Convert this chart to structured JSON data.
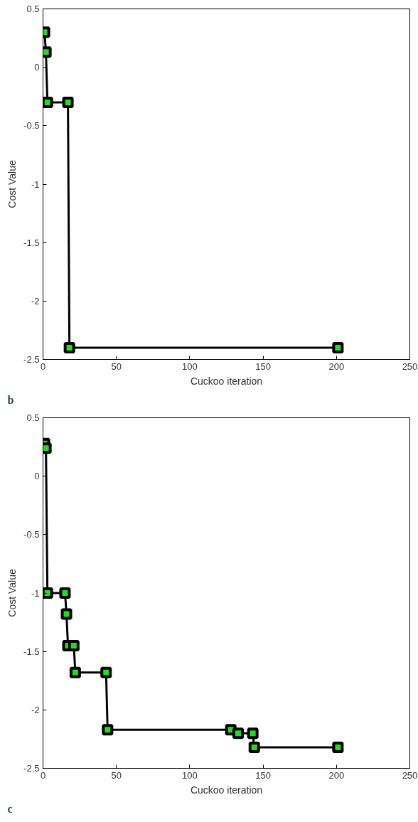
{
  "chart_data": [
    {
      "type": "line",
      "xlabel": "Cuckoo iteration",
      "ylabel": "Cost Value",
      "annotations": [
        "b"
      ],
      "marker": "square",
      "grid": false,
      "xlim": [
        0,
        250
      ],
      "ylim": [
        -2.5,
        0.5
      ],
      "xticks": [
        0,
        50,
        100,
        150,
        200,
        250
      ],
      "yticks": [
        -2.5,
        -2,
        -1.5,
        -1,
        -0.5,
        0,
        0.5
      ],
      "x": [
        1,
        2,
        3,
        17,
        18,
        201
      ],
      "series": [
        {
          "color": "#000000",
          "colors": [
            "#22dd22",
            "#22dd22",
            "#22dd22",
            "#22dd22",
            "#22dd22",
            "#22dd22"
          ],
          "values": [
            0.3,
            0.13,
            -0.3,
            -0.3,
            -2.4,
            -2.4
          ]
        }
      ]
    },
    {
      "type": "line",
      "xlabel": "Cuckoo iteration",
      "ylabel": "Cost Value",
      "annotations": [
        "c"
      ],
      "marker": "square",
      "grid": false,
      "xlim": [
        0,
        250
      ],
      "ylim": [
        -2.5,
        0.5
      ],
      "xticks": [
        0,
        50,
        100,
        150,
        200,
        250
      ],
      "yticks": [
        -2.5,
        -2,
        -1.5,
        -1,
        -0.5,
        0,
        0.5
      ],
      "x": [
        1,
        2,
        3,
        15,
        16,
        17,
        21,
        22,
        43,
        44,
        128,
        133,
        143,
        144,
        201
      ],
      "series": [
        {
          "color": "#000000",
          "colors": [
            "#22dd22",
            "#22dd22",
            "#22dd22",
            "#22dd22",
            "#22dd22",
            "#22dd22",
            "#22dd22",
            "#22dd22",
            "#22dd22",
            "#22dd22",
            "#22dd22",
            "#22dd22",
            "#22dd22",
            "#22dd22",
            "#22dd22"
          ],
          "values": [
            0.28,
            0.24,
            -1.0,
            -1.0,
            -1.18,
            -1.45,
            -1.45,
            -1.68,
            -1.68,
            -2.17,
            -2.17,
            -2.2,
            -2.2,
            -2.32,
            -2.32
          ]
        }
      ]
    }
  ]
}
